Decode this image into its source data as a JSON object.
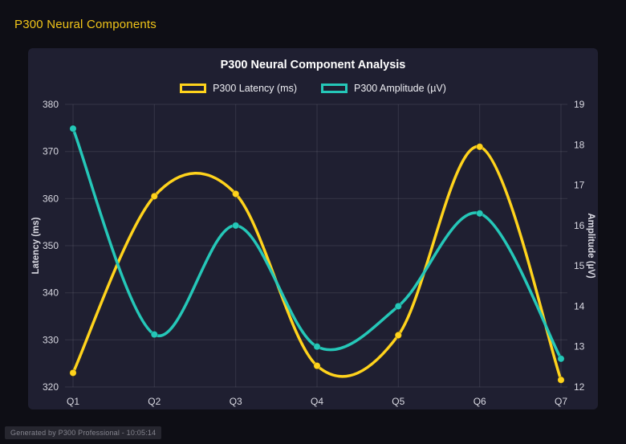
{
  "page": {
    "heading": "P300 Neural Components",
    "footer_badge": "Generated by P300 Professional - 10:05:14",
    "colors": {
      "background": "#0e0e15",
      "panel": "#1f1f31",
      "heading": "#f0c419",
      "text": "#eeeef3",
      "ticks": "#d9d9e2",
      "muted": "#84848e",
      "grid": "rgba(255,255,255,0.10)",
      "badge_bg": "#26262f"
    }
  },
  "chart_data": {
    "type": "line",
    "title": "P300 Neural Component Analysis",
    "categories": [
      "Q1",
      "Q2",
      "Q3",
      "Q4",
      "Q5",
      "Q6",
      "Q7"
    ],
    "series": [
      {
        "name": "P300 Latency (ms)",
        "axis": "left",
        "color": "#ffd31c",
        "values": [
          323,
          360.5,
          361,
          324.5,
          331,
          371,
          321.5
        ]
      },
      {
        "name": "P300 Amplitude (µV)",
        "axis": "right",
        "color": "#25c7b8",
        "values": [
          18.4,
          13.3,
          16.0,
          13.0,
          14.0,
          16.3,
          12.7
        ]
      }
    ],
    "left_axis": {
      "label": "Latency (ms)",
      "min": 320,
      "max": 380,
      "ticks": [
        320,
        330,
        340,
        350,
        360,
        370,
        380
      ]
    },
    "right_axis": {
      "label": "Amplitude (µV)",
      "min": 12,
      "max": 19,
      "ticks": [
        12,
        13,
        14,
        15,
        16,
        17,
        18,
        19
      ]
    },
    "grid": true,
    "legend_position": "top",
    "smoothing": "spline"
  }
}
